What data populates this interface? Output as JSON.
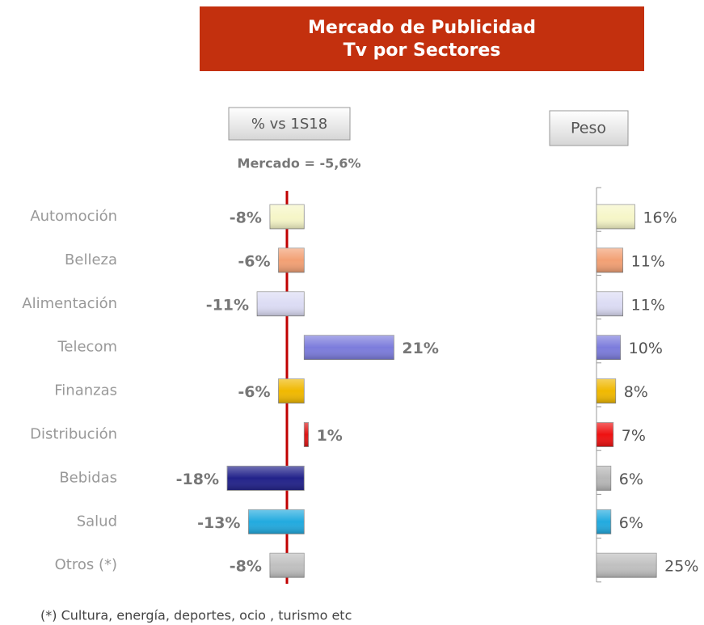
{
  "header": {
    "title": [
      "Mercado de Publicidad",
      "Tv por Sectores"
    ]
  },
  "footnote": "(*) Cultura, energía, deportes, ocio , turismo etc",
  "chart_data": [
    {
      "type": "bar",
      "orientation": "horizontal",
      "subtitle": "% vs 1S18",
      "annotation": "Mercado = -5,6%",
      "categories": [
        "Automoción",
        "Belleza",
        "Alimentación",
        "Telecom",
        "Finanzas",
        "Distribución",
        "Bebidas",
        "Salud",
        "Otros (*)"
      ],
      "values": [
        -8,
        -6,
        -11,
        21,
        -6,
        1,
        -18,
        -13,
        -8
      ],
      "value_labels": [
        "-8%",
        "-6%",
        "-11%",
        "21%",
        "-6%",
        "1%",
        "-18%",
        "-13%",
        "-8%"
      ],
      "colors": [
        "#f6f6c8",
        "#f2a074",
        "#dcdcf4",
        "#7c7cdc",
        "#f0b800",
        "#dd1515",
        "#22228a",
        "#22aadf",
        "#c0c0c0"
      ],
      "xlim": [
        -25,
        30
      ]
    },
    {
      "type": "bar",
      "orientation": "horizontal",
      "subtitle": "Peso",
      "values": [
        16,
        11,
        11,
        10,
        8,
        7,
        6,
        6,
        25
      ],
      "value_labels": [
        "16%",
        "11%",
        "11%",
        "10%",
        "8%",
        "7%",
        "6%",
        "6%",
        "25%"
      ],
      "colors": [
        "#f6f6c8",
        "#f2a074",
        "#dcdcf4",
        "#7c7cdc",
        "#f0b800",
        "#ee1111",
        "#b8b8b8",
        "#22aadf",
        "#c0c0c0"
      ],
      "xlim": [
        0,
        30
      ]
    }
  ]
}
